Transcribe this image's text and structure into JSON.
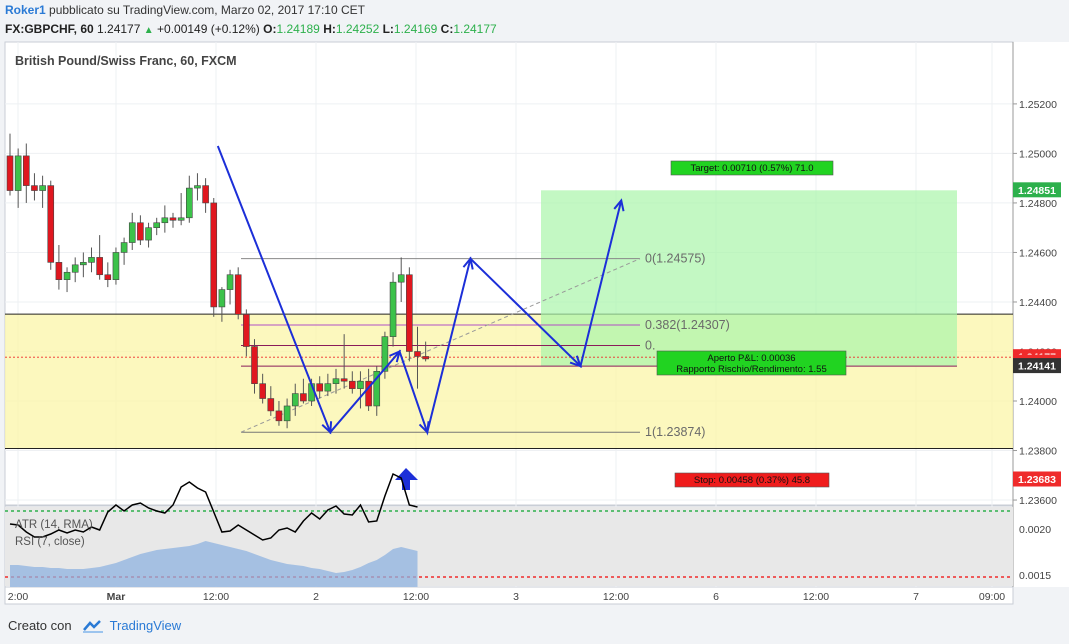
{
  "header": {
    "user": "Roker1",
    "published": "pubblicato su TradingView.com, Marzo 02, 2017 17:10 CET",
    "symbol": "FX:GBPCHF, 60",
    "last": "1.24177",
    "change": "+0.00149 (+0.12%)",
    "open_label": "O:",
    "open": "1.24189",
    "high_label": "H:",
    "high": "1.24252",
    "low_label": "L:",
    "low": "1.24169",
    "close_label": "C:",
    "close": "1.24177"
  },
  "chart_data": {
    "type": "candlestick",
    "title": "British Pound/Swiss Franc, 60, FXCM",
    "ylim": [
      1.2358,
      1.2545
    ],
    "y_ticks": [
      "1.25200",
      "1.25000",
      "1.24800",
      "1.24600",
      "1.24400",
      "1.24200",
      "1.24000",
      "1.23800",
      "1.23600"
    ],
    "x_ticks": [
      "2:00",
      "Mar",
      "12:00",
      "2",
      "12:00",
      "3",
      "12:00",
      "6",
      "12:00",
      "7",
      "09:00"
    ],
    "price_badges": [
      {
        "label": "1.24851",
        "value": 1.24851,
        "color": "#2db04c"
      },
      {
        "label": "1.24177",
        "value": 1.24177,
        "color": "#ef2b2b"
      },
      {
        "label": "49:52",
        "value": 1.24155,
        "color": "#ef2b2b"
      },
      {
        "label": "1.24141",
        "value": 1.24141,
        "color": "#333333"
      },
      {
        "label": "1.23683",
        "value": 1.23683,
        "color": "#ef2b2b"
      }
    ],
    "candles": [
      {
        "o": 1.2499,
        "h": 1.2508,
        "l": 1.2483,
        "c": 1.2485
      },
      {
        "o": 1.2485,
        "h": 1.2502,
        "l": 1.2478,
        "c": 1.2499
      },
      {
        "o": 1.2499,
        "h": 1.2504,
        "l": 1.248,
        "c": 1.2487
      },
      {
        "o": 1.2487,
        "h": 1.2492,
        "l": 1.2481,
        "c": 1.2485
      },
      {
        "o": 1.2485,
        "h": 1.2491,
        "l": 1.2478,
        "c": 1.2487
      },
      {
        "o": 1.2487,
        "h": 1.2489,
        "l": 1.2453,
        "c": 1.2456
      },
      {
        "o": 1.2456,
        "h": 1.2463,
        "l": 1.2445,
        "c": 1.2449
      },
      {
        "o": 1.2449,
        "h": 1.2454,
        "l": 1.2444,
        "c": 1.2452
      },
      {
        "o": 1.2452,
        "h": 1.2458,
        "l": 1.2448,
        "c": 1.2455
      },
      {
        "o": 1.2455,
        "h": 1.246,
        "l": 1.245,
        "c": 1.2456
      },
      {
        "o": 1.2456,
        "h": 1.2462,
        "l": 1.2452,
        "c": 1.2458
      },
      {
        "o": 1.2458,
        "h": 1.2467,
        "l": 1.2449,
        "c": 1.2451
      },
      {
        "o": 1.2451,
        "h": 1.2456,
        "l": 1.2446,
        "c": 1.2449
      },
      {
        "o": 1.2449,
        "h": 1.2462,
        "l": 1.2447,
        "c": 1.246
      },
      {
        "o": 1.246,
        "h": 1.2466,
        "l": 1.2455,
        "c": 1.2464
      },
      {
        "o": 1.2464,
        "h": 1.2476,
        "l": 1.2461,
        "c": 1.2472
      },
      {
        "o": 1.2472,
        "h": 1.2475,
        "l": 1.2463,
        "c": 1.2465
      },
      {
        "o": 1.2465,
        "h": 1.2472,
        "l": 1.2462,
        "c": 1.247
      },
      {
        "o": 1.247,
        "h": 1.2474,
        "l": 1.2467,
        "c": 1.2472
      },
      {
        "o": 1.2472,
        "h": 1.2479,
        "l": 1.2468,
        "c": 1.2474
      },
      {
        "o": 1.2474,
        "h": 1.2476,
        "l": 1.247,
        "c": 1.2473
      },
      {
        "o": 1.2473,
        "h": 1.2484,
        "l": 1.2471,
        "c": 1.2474
      },
      {
        "o": 1.2474,
        "h": 1.2491,
        "l": 1.2472,
        "c": 1.2486
      },
      {
        "o": 1.2486,
        "h": 1.2492,
        "l": 1.2481,
        "c": 1.2487
      },
      {
        "o": 1.2487,
        "h": 1.249,
        "l": 1.2476,
        "c": 1.248
      },
      {
        "o": 1.248,
        "h": 1.2482,
        "l": 1.2434,
        "c": 1.2438
      },
      {
        "o": 1.2438,
        "h": 1.2446,
        "l": 1.2432,
        "c": 1.2445
      },
      {
        "o": 1.2445,
        "h": 1.2453,
        "l": 1.2439,
        "c": 1.2451
      },
      {
        "o": 1.2451,
        "h": 1.2454,
        "l": 1.2433,
        "c": 1.2435
      },
      {
        "o": 1.2435,
        "h": 1.2437,
        "l": 1.2418,
        "c": 1.2422
      },
      {
        "o": 1.2422,
        "h": 1.2425,
        "l": 1.2403,
        "c": 1.2407
      },
      {
        "o": 1.2407,
        "h": 1.2411,
        "l": 1.2399,
        "c": 1.2401
      },
      {
        "o": 1.2401,
        "h": 1.2406,
        "l": 1.2394,
        "c": 1.2396
      },
      {
        "o": 1.2396,
        "h": 1.24,
        "l": 1.239,
        "c": 1.2392
      },
      {
        "o": 1.2392,
        "h": 1.2401,
        "l": 1.2389,
        "c": 1.2398
      },
      {
        "o": 1.2398,
        "h": 1.2407,
        "l": 1.2394,
        "c": 1.2403
      },
      {
        "o": 1.2403,
        "h": 1.2409,
        "l": 1.2399,
        "c": 1.24
      },
      {
        "o": 1.24,
        "h": 1.2409,
        "l": 1.2398,
        "c": 1.2407
      },
      {
        "o": 1.2407,
        "h": 1.241,
        "l": 1.2401,
        "c": 1.2404
      },
      {
        "o": 1.2404,
        "h": 1.2411,
        "l": 1.2402,
        "c": 1.2407
      },
      {
        "o": 1.2407,
        "h": 1.2413,
        "l": 1.2403,
        "c": 1.2409
      },
      {
        "o": 1.2409,
        "h": 1.2427,
        "l": 1.2405,
        "c": 1.2408
      },
      {
        "o": 1.2408,
        "h": 1.2412,
        "l": 1.2403,
        "c": 1.2405
      },
      {
        "o": 1.2405,
        "h": 1.2412,
        "l": 1.2397,
        "c": 1.2408
      },
      {
        "o": 1.2408,
        "h": 1.2413,
        "l": 1.2396,
        "c": 1.2398
      },
      {
        "o": 1.2398,
        "h": 1.2414,
        "l": 1.2394,
        "c": 1.2412
      },
      {
        "o": 1.2412,
        "h": 1.2428,
        "l": 1.2409,
        "c": 1.2426
      },
      {
        "o": 1.2426,
        "h": 1.2452,
        "l": 1.2422,
        "c": 1.2448
      },
      {
        "o": 1.2448,
        "h": 1.2458,
        "l": 1.244,
        "c": 1.2451
      },
      {
        "o": 1.2451,
        "h": 1.2454,
        "l": 1.2416,
        "c": 1.242
      },
      {
        "o": 1.242,
        "h": 1.243,
        "l": 1.2405,
        "c": 1.2418
      },
      {
        "o": 1.2418,
        "h": 1.2424,
        "l": 1.2416,
        "c": 1.2417
      }
    ],
    "zones": [
      {
        "name": "support-resistance-box",
        "from": 1.23808,
        "to": 1.24351,
        "color": "#fbf5a8"
      },
      {
        "name": "target-zone",
        "from": 1.24141,
        "to": 1.24851,
        "color": "#a9f5a9"
      },
      {
        "name": "stop-zone",
        "from": 1.23683,
        "to": 1.24141,
        "color": "#ffa37a"
      }
    ],
    "fibonacci": [
      {
        "ratio": "0",
        "label": "0(1.24575)",
        "value": 1.24575
      },
      {
        "ratio": "0.382",
        "label": "0.382(1.24307)",
        "value": 1.24307
      },
      {
        "ratio": "0.5",
        "label": "0.",
        "value": 1.24224
      },
      {
        "ratio": "1",
        "label": "1(1.23874)",
        "value": 1.23874
      }
    ],
    "pattern_points": [
      {
        "x": 25.5,
        "y": 1.2503
      },
      {
        "x": 39.3,
        "y": 1.23874
      },
      {
        "x": 47.8,
        "y": 1.242
      },
      {
        "x": 51.2,
        "y": 1.23874
      },
      {
        "x": 56.5,
        "y": 1.24575
      },
      {
        "x": 70.0,
        "y": 1.24141
      },
      {
        "x": 75.0,
        "y": 1.2481
      }
    ],
    "labels": {
      "target": "Target: 0.00710 (0.57%) 71.0",
      "open_pl": "Aperto P&L: 0.00036",
      "risk_reward": "Rapporto Rischio/Rendimento: 1.55",
      "stop": "Stop: 0.00458 (0.37%) 45.8"
    },
    "indicators": {
      "atr_label": "ATR (14, RMA)",
      "rsi_label": "RSI (7, close)",
      "y_ticks": [
        "0.0020",
        "0.0015"
      ],
      "rsi_overbought_color": "#2db04c",
      "rsi_oversold_color": "#ef2b2b",
      "rsi_line_color": "#000000",
      "atr_fill_color": "#8fb3e0"
    }
  },
  "footer": {
    "created_with": "Creato con",
    "brand": "TradingView"
  }
}
